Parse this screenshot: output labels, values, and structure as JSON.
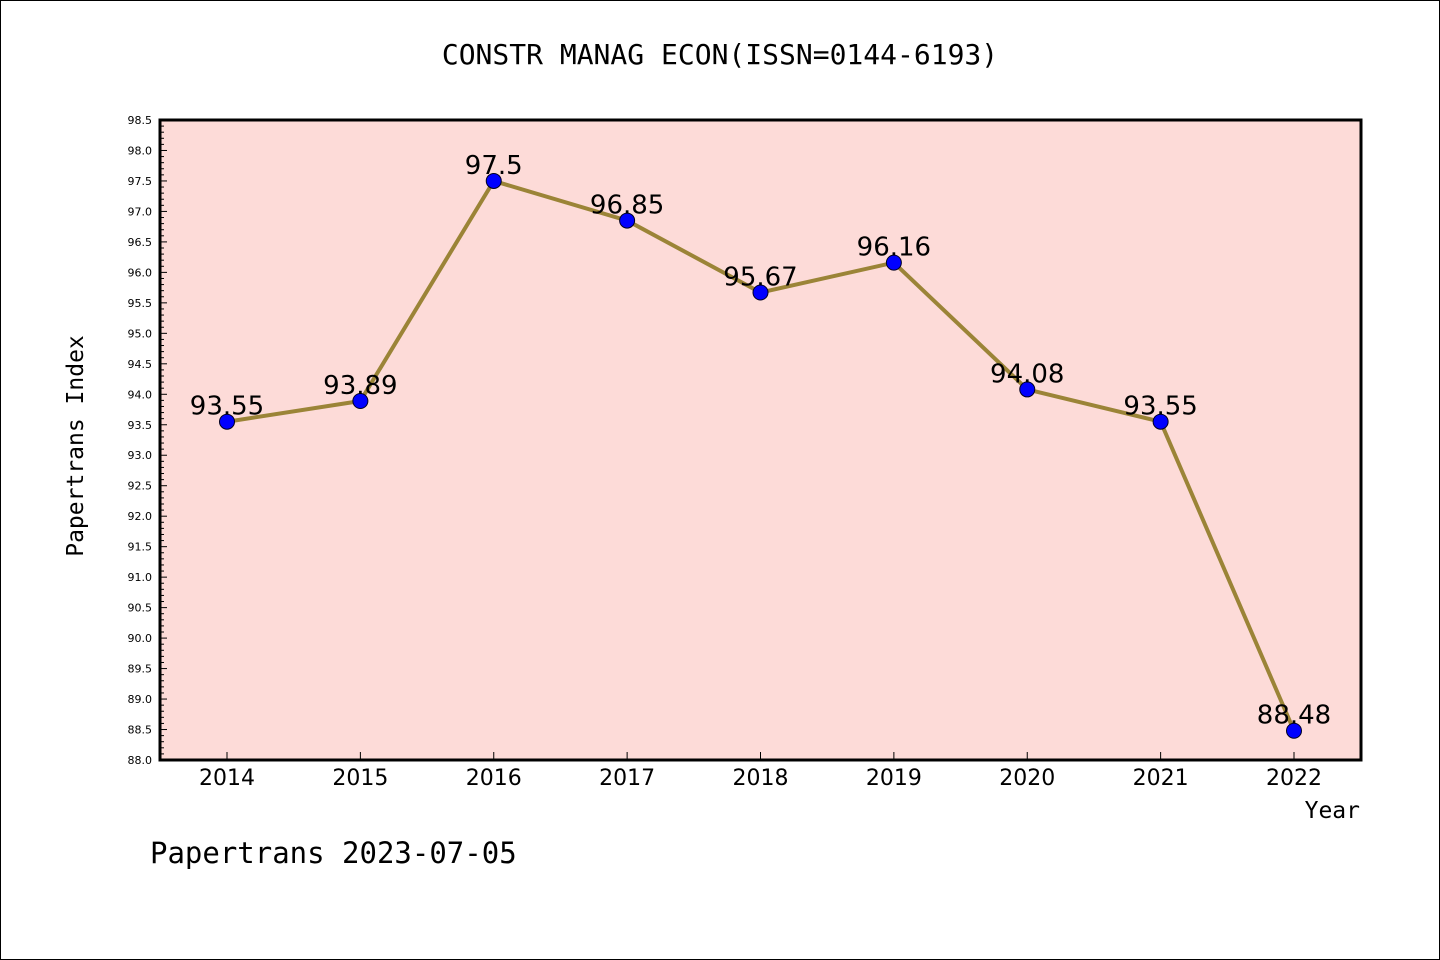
{
  "title": "CONSTR MANAG ECON(ISSN=0144-6193)",
  "footer": "Papertrans 2023-07-05",
  "colors": {
    "plot_background": "#fddbd8",
    "line": "#9b8437",
    "marker": "#0000ff"
  },
  "chart_data": {
    "type": "line",
    "title": "CONSTR MANAG ECON(ISSN=0144-6193)",
    "xlabel": "Year",
    "ylabel": "Papertrans Index",
    "categories": [
      "2014",
      "2015",
      "2016",
      "2017",
      "2018",
      "2019",
      "2020",
      "2021",
      "2022"
    ],
    "series": [
      {
        "values": [
          93.55,
          93.89,
          97.5,
          96.85,
          95.67,
          96.16,
          94.08,
          93.55,
          88.48
        ],
        "labels": [
          "93.55",
          "93.89",
          "97.5",
          "96.85",
          "95.67",
          "96.16",
          "94.08",
          "93.55",
          "88.48"
        ]
      }
    ],
    "ylim": [
      88.0,
      98.5
    ],
    "yticks": [
      "88.0",
      "88.5",
      "89.0",
      "89.5",
      "90.0",
      "90.5",
      "91.0",
      "91.5",
      "92.0",
      "92.5",
      "93.0",
      "93.5",
      "94.0",
      "94.5",
      "95.0",
      "95.5",
      "96.0",
      "96.5",
      "97.0",
      "97.5",
      "98.0",
      "98.5"
    ],
    "grid": false,
    "legend": "none"
  }
}
